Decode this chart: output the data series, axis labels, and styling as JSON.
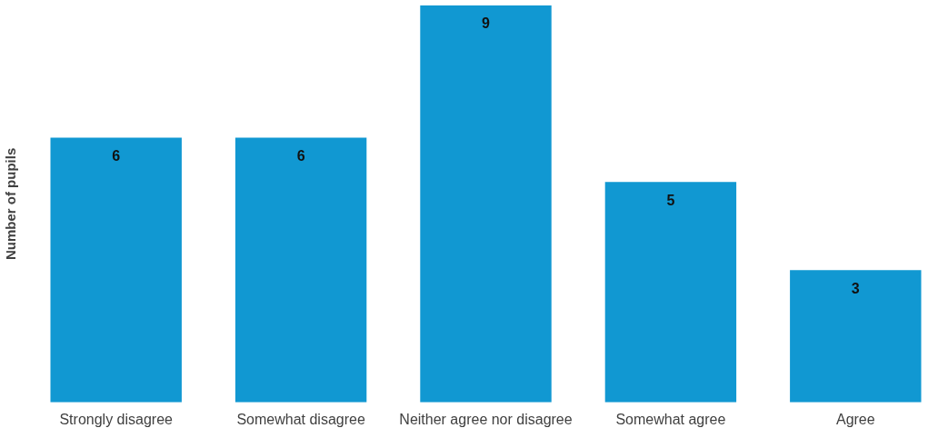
{
  "chart_data": {
    "type": "bar",
    "ylabel": "Number of pupils",
    "categories": [
      "Strongly disagree",
      "Somewhat disagree",
      "Neither agree nor disagree",
      "Somewhat agree",
      "Agree"
    ],
    "values": [
      6,
      6,
      9,
      5,
      3
    ],
    "color": "#1198d2",
    "ylim": [
      0,
      9
    ],
    "tick_labels": "x",
    "grid": false,
    "legend": false,
    "data_labels": true
  }
}
